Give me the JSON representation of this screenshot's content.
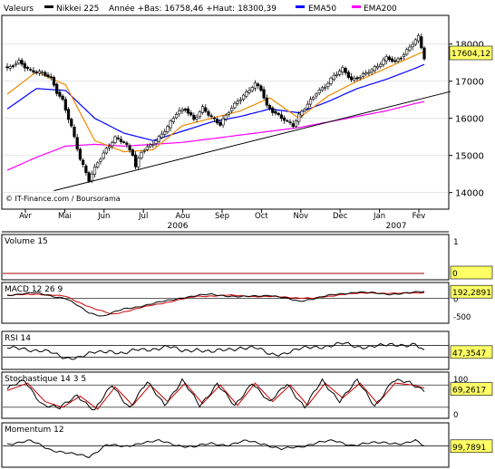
{
  "header": {
    "valeurs_label": "Valeurs",
    "symbol": "Nikkei 225",
    "range_text": "Année +Bas: 16758,46 +Haut: 18300,39",
    "ema50_label": "EMA50",
    "ema200_label": "EMA200",
    "colors": {
      "price": "#000000",
      "ema20": "#f08a00",
      "ema50": "#0000ff",
      "ema200": "#ff00ff"
    }
  },
  "watermark": "© IT-Finance.com / Boursorama",
  "chart_data": [
    {
      "id": "price",
      "type": "candlestick",
      "ylim": [
        13700,
        18600
      ],
      "yticks": [
        14000,
        15000,
        16000,
        17000,
        18000
      ],
      "ytick_labels": [
        "14000",
        "15000",
        "16000",
        "17000",
        "18000"
      ],
      "last_value_label": "17604,12",
      "last_value": 17604.12,
      "x_months": [
        "Avr",
        "Mai",
        "Jun",
        "Jul",
        "Aou",
        "Sep",
        "Oct",
        "Nov",
        "Dec",
        "Jan",
        "Fev"
      ],
      "x_years": [
        "2006",
        "2007"
      ],
      "close_anchors": [
        [
          0,
          17300
        ],
        [
          4,
          17550
        ],
        [
          8,
          17300
        ],
        [
          12,
          17200
        ],
        [
          15,
          17050
        ],
        [
          17,
          16700
        ],
        [
          19,
          16500
        ],
        [
          22,
          15800
        ],
        [
          25,
          14900
        ],
        [
          28,
          14300
        ],
        [
          31,
          14800
        ],
        [
          34,
          15200
        ],
        [
          37,
          15500
        ],
        [
          40,
          15350
        ],
        [
          43,
          15000
        ],
        [
          44,
          14650
        ],
        [
          46,
          15100
        ],
        [
          49,
          15300
        ],
        [
          52,
          15500
        ],
        [
          55,
          15750
        ],
        [
          58,
          16100
        ],
        [
          61,
          16250
        ],
        [
          64,
          16000
        ],
        [
          67,
          16300
        ],
        [
          70,
          16000
        ],
        [
          73,
          15800
        ],
        [
          76,
          16200
        ],
        [
          79,
          16500
        ],
        [
          82,
          16700
        ],
        [
          85,
          16900
        ],
        [
          87,
          16750
        ],
        [
          89,
          16300
        ],
        [
          92,
          16150
        ],
        [
          95,
          16000
        ],
        [
          98,
          15800
        ],
        [
          100,
          16050
        ],
        [
          103,
          16350
        ],
        [
          106,
          16700
        ],
        [
          109,
          16900
        ],
        [
          112,
          17150
        ],
        [
          115,
          17300
        ],
        [
          118,
          17000
        ],
        [
          121,
          17150
        ],
        [
          124,
          17300
        ],
        [
          127,
          17400
        ],
        [
          130,
          17600
        ],
        [
          133,
          17500
        ],
        [
          136,
          17750
        ],
        [
          139,
          18050
        ],
        [
          141,
          18200
        ],
        [
          143,
          17604
        ]
      ],
      "ema_anchors": {
        "ema20": [
          [
            0,
            16650
          ],
          [
            10,
            17250
          ],
          [
            20,
            16900
          ],
          [
            30,
            15400
          ],
          [
            40,
            15100
          ],
          [
            50,
            15150
          ],
          [
            60,
            15800
          ],
          [
            70,
            16000
          ],
          [
            80,
            16200
          ],
          [
            90,
            16550
          ],
          [
            100,
            16000
          ],
          [
            110,
            16600
          ],
          [
            120,
            17000
          ],
          [
            130,
            17350
          ],
          [
            140,
            17700
          ],
          [
            143,
            17800
          ]
        ],
        "ema50": [
          [
            0,
            16250
          ],
          [
            10,
            16800
          ],
          [
            20,
            16750
          ],
          [
            30,
            16000
          ],
          [
            40,
            15600
          ],
          [
            50,
            15400
          ],
          [
            60,
            15650
          ],
          [
            70,
            15900
          ],
          [
            80,
            16050
          ],
          [
            90,
            16250
          ],
          [
            100,
            16150
          ],
          [
            110,
            16450
          ],
          [
            120,
            16800
          ],
          [
            130,
            17050
          ],
          [
            140,
            17350
          ],
          [
            143,
            17450
          ]
        ],
        "ema200": [
          [
            0,
            14600
          ],
          [
            10,
            14950
          ],
          [
            20,
            15250
          ],
          [
            30,
            15300
          ],
          [
            40,
            15250
          ],
          [
            50,
            15300
          ],
          [
            60,
            15350
          ],
          [
            70,
            15450
          ],
          [
            80,
            15550
          ],
          [
            90,
            15650
          ],
          [
            100,
            15750
          ],
          [
            110,
            15900
          ],
          [
            120,
            16050
          ],
          [
            130,
            16200
          ],
          [
            140,
            16400
          ],
          [
            143,
            16450
          ]
        ]
      },
      "trendline": [
        [
          16,
          14050
        ],
        [
          100,
          15700
        ]
      ]
    },
    {
      "id": "volume",
      "type": "line",
      "title": "Volume 15",
      "ylim": [
        0,
        1
      ],
      "ytick_labels": [
        "1",
        "0"
      ],
      "last_value_label": "0",
      "last_value": 0
    },
    {
      "id": "macd",
      "type": "line",
      "title": "MACD 12 26 9",
      "ylim": [
        -600,
        300
      ],
      "ytick_labels": [
        "0",
        "-500"
      ],
      "last_value_label": "192,2891",
      "last_value": 192.2891,
      "series_anchors": {
        "macd": [
          [
            0,
            100
          ],
          [
            10,
            160
          ],
          [
            20,
            0
          ],
          [
            28,
            -400
          ],
          [
            33,
            -500
          ],
          [
            40,
            -300
          ],
          [
            50,
            -150
          ],
          [
            60,
            30
          ],
          [
            70,
            120
          ],
          [
            80,
            40
          ],
          [
            90,
            100
          ],
          [
            100,
            -80
          ],
          [
            110,
            80
          ],
          [
            120,
            190
          ],
          [
            130,
            120
          ],
          [
            140,
            170
          ],
          [
            143,
            192
          ]
        ],
        "signal": [
          [
            0,
            80
          ],
          [
            10,
            130
          ],
          [
            20,
            60
          ],
          [
            30,
            -300
          ],
          [
            36,
            -450
          ],
          [
            45,
            -280
          ],
          [
            55,
            -100
          ],
          [
            65,
            60
          ],
          [
            75,
            90
          ],
          [
            85,
            60
          ],
          [
            95,
            40
          ],
          [
            105,
            0
          ],
          [
            115,
            120
          ],
          [
            125,
            160
          ],
          [
            135,
            140
          ],
          [
            143,
            175
          ]
        ]
      }
    },
    {
      "id": "rsi",
      "type": "line",
      "title": "RSI 14",
      "ylim": [
        0,
        100
      ],
      "ytick_labels": [],
      "last_value_label": "47,3547",
      "last_value": 47.3547,
      "levels": [
        30,
        70
      ],
      "series_anchors": {
        "rsi": [
          [
            0,
            60
          ],
          [
            5,
            65
          ],
          [
            10,
            50
          ],
          [
            15,
            45
          ],
          [
            20,
            30
          ],
          [
            25,
            28
          ],
          [
            30,
            45
          ],
          [
            35,
            55
          ],
          [
            40,
            40
          ],
          [
            45,
            55
          ],
          [
            50,
            60
          ],
          [
            55,
            65
          ],
          [
            60,
            50
          ],
          [
            65,
            60
          ],
          [
            70,
            45
          ],
          [
            75,
            55
          ],
          [
            80,
            65
          ],
          [
            85,
            60
          ],
          [
            90,
            40
          ],
          [
            95,
            45
          ],
          [
            100,
            55
          ],
          [
            105,
            65
          ],
          [
            110,
            70
          ],
          [
            115,
            75
          ],
          [
            120,
            65
          ],
          [
            125,
            70
          ],
          [
            130,
            68
          ],
          [
            135,
            72
          ],
          [
            140,
            78
          ],
          [
            143,
            47
          ]
        ]
      }
    },
    {
      "id": "stochastic",
      "type": "line",
      "title": "Stochastique 14 3 5",
      "ylim": [
        0,
        100
      ],
      "ytick_labels": [
        "100",
        "0"
      ],
      "last_value_label": "69,2617",
      "last_value": 69.2617,
      "levels": [
        20,
        80
      ],
      "series_anchors": {
        "k": [
          [
            0,
            70
          ],
          [
            6,
            90
          ],
          [
            12,
            30
          ],
          [
            18,
            15
          ],
          [
            24,
            55
          ],
          [
            30,
            10
          ],
          [
            36,
            80
          ],
          [
            42,
            20
          ],
          [
            48,
            85
          ],
          [
            54,
            30
          ],
          [
            60,
            90
          ],
          [
            66,
            25
          ],
          [
            72,
            85
          ],
          [
            78,
            20
          ],
          [
            84,
            90
          ],
          [
            90,
            30
          ],
          [
            96,
            85
          ],
          [
            102,
            20
          ],
          [
            108,
            90
          ],
          [
            114,
            40
          ],
          [
            120,
            90
          ],
          [
            126,
            25
          ],
          [
            132,
            90
          ],
          [
            138,
            85
          ],
          [
            143,
            69
          ]
        ],
        "d": [
          [
            0,
            65
          ],
          [
            7,
            85
          ],
          [
            13,
            35
          ],
          [
            19,
            20
          ],
          [
            25,
            50
          ],
          [
            31,
            15
          ],
          [
            37,
            75
          ],
          [
            43,
            25
          ],
          [
            49,
            80
          ],
          [
            55,
            35
          ],
          [
            61,
            85
          ],
          [
            67,
            30
          ],
          [
            73,
            80
          ],
          [
            79,
            25
          ],
          [
            85,
            85
          ],
          [
            91,
            35
          ],
          [
            97,
            80
          ],
          [
            103,
            25
          ],
          [
            109,
            85
          ],
          [
            115,
            45
          ],
          [
            121,
            85
          ],
          [
            127,
            30
          ],
          [
            133,
            85
          ],
          [
            139,
            80
          ],
          [
            143,
            72
          ]
        ]
      }
    },
    {
      "id": "momentum",
      "type": "line",
      "title": "Momentum 12",
      "ylim": [
        85,
        115
      ],
      "ytick_labels": [],
      "last_value_label": "99,7891",
      "last_value": 99.7891,
      "levels": [
        100
      ],
      "series_anchors": {
        "momentum": [
          [
            0,
            102
          ],
          [
            8,
            104
          ],
          [
            15,
            97
          ],
          [
            22,
            93
          ],
          [
            28,
            91
          ],
          [
            34,
            101
          ],
          [
            40,
            99
          ],
          [
            46,
            103
          ],
          [
            52,
            104
          ],
          [
            58,
            101
          ],
          [
            64,
            99
          ],
          [
            70,
            102
          ],
          [
            76,
            101
          ],
          [
            82,
            104
          ],
          [
            88,
            102
          ],
          [
            94,
            97
          ],
          [
            100,
            99
          ],
          [
            106,
            103
          ],
          [
            112,
            104
          ],
          [
            118,
            101
          ],
          [
            124,
            102
          ],
          [
            130,
            103
          ],
          [
            136,
            102
          ],
          [
            140,
            104
          ],
          [
            143,
            99.8
          ]
        ]
      }
    }
  ]
}
